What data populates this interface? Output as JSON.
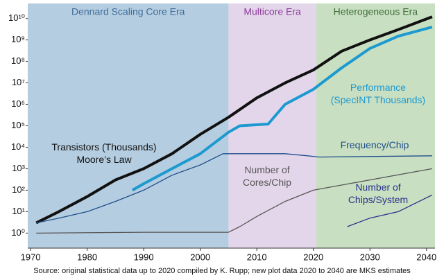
{
  "chart_data": {
    "type": "line",
    "log_y": true,
    "xlim": [
      1969.5,
      2041.5
    ],
    "ylim": [
      0.2,
      50000000000
    ],
    "xticks": [
      1970,
      1980,
      1990,
      2000,
      2010,
      2020,
      2030,
      2040
    ],
    "yticks": [
      {
        "value": 1,
        "label": "10⁰"
      },
      {
        "value": 10,
        "label": "10¹"
      },
      {
        "value": 100,
        "label": "10²"
      },
      {
        "value": 1000,
        "label": "10³"
      },
      {
        "value": 10000,
        "label": "10⁴"
      },
      {
        "value": 100000,
        "label": "10⁵"
      },
      {
        "value": 1000000,
        "label": "10⁶"
      },
      {
        "value": 10000000,
        "label": "10⁷"
      },
      {
        "value": 100000000,
        "label": "10⁸"
      },
      {
        "value": 1000000000,
        "label": "10⁹"
      },
      {
        "value": 10000000000,
        "label": "10¹⁰"
      }
    ],
    "regions": [
      {
        "label": "Dennard Scaling Core Era",
        "start": 1969.5,
        "end": 2005,
        "color": "#b5cde0",
        "text_color": "#3d6c99"
      },
      {
        "label": "Multicore Era",
        "start": 2005,
        "end": 2020.5,
        "color": "#e4d6ea",
        "text_color": "#8b3d9b"
      },
      {
        "label": "Heterogeneous Era",
        "start": 2020.5,
        "end": 2041.5,
        "color": "#c8dfc2",
        "text_color": "#3f6e3a"
      }
    ],
    "series": [
      {
        "name": "Transistors (Thousands)\nMoore’s Law",
        "color": "#111111",
        "width": 4,
        "x": [
          1971,
          1975,
          1980,
          1985,
          1990,
          1995,
          2000,
          2005,
          2010,
          2015,
          2020,
          2025,
          2030,
          2035,
          2041
        ],
        "values": [
          3,
          10,
          50,
          300,
          1000,
          5000,
          40000,
          250000,
          2000000,
          10000000,
          40000000,
          300000000,
          1000000000,
          3000000000,
          12000000000
        ]
      },
      {
        "name": "Performance\n(SpecINT Thousands)",
        "color": "#1c9ad0",
        "width": 4,
        "x": [
          1988,
          1990,
          1995,
          2000,
          2005,
          2007,
          2012,
          2015,
          2020,
          2025,
          2030,
          2035,
          2041
        ],
        "values": [
          100,
          200,
          1000,
          5000,
          50000,
          100000,
          120000,
          1000000,
          5000000,
          50000000,
          400000000,
          1500000000,
          4000000000
        ]
      },
      {
        "name": "Frequency/Chip",
        "color": "#1f4e8c",
        "width": 1.3,
        "x": [
          1971,
          1975,
          1980,
          1985,
          1990,
          1995,
          2000,
          2004,
          2010,
          2015,
          2019,
          2021,
          2041
        ],
        "values": [
          3,
          5,
          10,
          30,
          100,
          500,
          1500,
          5000,
          5000,
          5000,
          4000,
          3500,
          4000
        ]
      },
      {
        "name": "Number of\nCores/Chip",
        "color": "#555555",
        "width": 1.3,
        "x": [
          1971,
          1990,
          2005,
          2007,
          2010,
          2015,
          2020,
          2030,
          2041
        ],
        "values": [
          1,
          1.1,
          1.1,
          2,
          6,
          30,
          100,
          300,
          1000
        ]
      },
      {
        "name": "Number of\nChips/System",
        "color": "#2a2f8a",
        "width": 1.3,
        "x": [
          2026,
          2030,
          2035,
          2041
        ],
        "values": [
          2,
          5,
          10,
          60
        ]
      }
    ],
    "source": "Source: original statistical data up to 2020 compiled by K. Rupp; new plot data 2020 to 2040 are MKS estimates"
  }
}
